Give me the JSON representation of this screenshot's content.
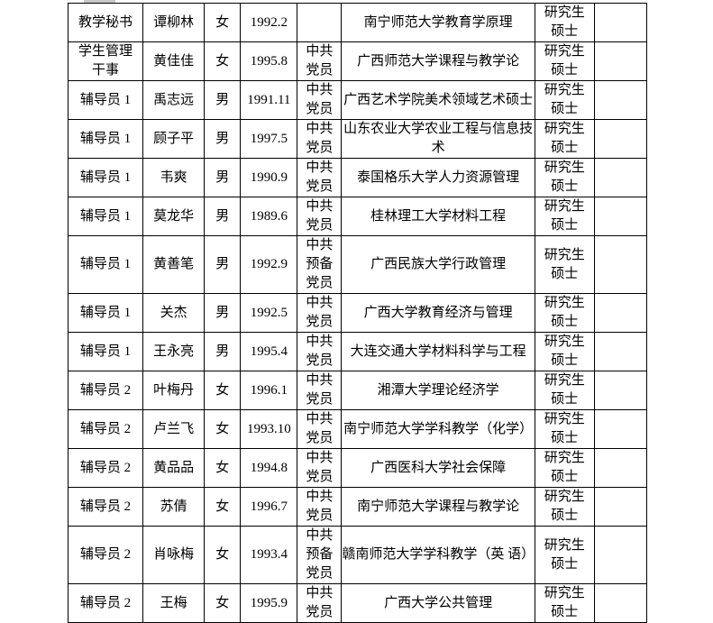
{
  "colors": {
    "background": "#ffffff",
    "border": "#000000",
    "text": "#000000",
    "top_artifact": "#c8c8c8"
  },
  "table": {
    "column_keys": [
      "position",
      "name",
      "gender",
      "birth_date",
      "political_status",
      "school_major",
      "degree",
      "note"
    ],
    "rows": [
      {
        "position": "教学秘书",
        "name": "谭柳林",
        "gender": "女",
        "birth_date": "1992.2",
        "political_status": "",
        "school_major": "南宁师范大学教育学原理",
        "degree": "研究生\n硕士",
        "note": ""
      },
      {
        "position": "学生管理\n干事",
        "name": "黄佳佳",
        "gender": "女",
        "birth_date": "1995.8",
        "political_status": "中共\n党员",
        "school_major": "广西师范大学课程与教学论",
        "degree": "研究生\n硕士",
        "note": ""
      },
      {
        "position": "辅导员 1",
        "name": "禹志远",
        "gender": "男",
        "birth_date": "1991.11",
        "political_status": "中共\n党员",
        "school_major": "广西艺术学院美术领域艺术硕士",
        "degree": "研究生\n硕士",
        "note": ""
      },
      {
        "position": "辅导员 1",
        "name": "顾子平",
        "gender": "男",
        "birth_date": "1997.5",
        "political_status": "中共\n党员",
        "school_major": "山东农业大学农业工程与信息技\n术",
        "degree": "研究生\n硕士",
        "note": ""
      },
      {
        "position": "辅导员 1",
        "name": "韦爽",
        "gender": "男",
        "birth_date": "1990.9",
        "political_status": "中共\n党员",
        "school_major": "泰国格乐大学人力资源管理",
        "degree": "研究生\n硕士",
        "note": ""
      },
      {
        "position": "辅导员 1",
        "name": "莫龙华",
        "gender": "男",
        "birth_date": "1989.6",
        "political_status": "中共\n党员",
        "school_major": "桂林理工大学材料工程",
        "degree": "研究生\n硕士",
        "note": ""
      },
      {
        "position": "辅导员 1",
        "name": "黄善笔",
        "gender": "男",
        "birth_date": "1992.9",
        "political_status": "中共\n预备\n党员",
        "school_major": "广西民族大学行政管理",
        "degree": "研究生\n硕士",
        "note": ""
      },
      {
        "position": "辅导员 1",
        "name": "关杰",
        "gender": "男",
        "birth_date": "1992.5",
        "political_status": "中共\n党员",
        "school_major": "广西大学教育经济与管理",
        "degree": "研究生\n硕士",
        "note": ""
      },
      {
        "position": "辅导员 1",
        "name": "王永亮",
        "gender": "男",
        "birth_date": "1995.4",
        "political_status": "中共\n党员",
        "school_major": "大连交通大学材料科学与工程",
        "degree": "研究生\n硕士",
        "note": ""
      },
      {
        "position": "辅导员 2",
        "name": "叶梅丹",
        "gender": "女",
        "birth_date": "1996.1",
        "political_status": "中共\n党员",
        "school_major": "湘潭大学理论经济学",
        "degree": "研究生\n硕士",
        "note": ""
      },
      {
        "position": "辅导员 2",
        "name": "卢兰飞",
        "gender": "女",
        "birth_date": "1993.10",
        "political_status": "中共\n党员",
        "school_major": "南宁师范大学学科教学（化学）",
        "degree": "研究生\n硕士",
        "note": ""
      },
      {
        "position": "辅导员 2",
        "name": "黄品品",
        "gender": "女",
        "birth_date": "1994.8",
        "political_status": "中共\n党员",
        "school_major": "广西医科大学社会保障",
        "degree": "研究生\n硕士",
        "note": ""
      },
      {
        "position": "辅导员 2",
        "name": "苏倩",
        "gender": "女",
        "birth_date": "1996.7",
        "political_status": "中共\n党员",
        "school_major": "南宁师范大学课程与教学论",
        "degree": "研究生\n硕士",
        "note": ""
      },
      {
        "position": "辅导员 2",
        "name": "肖咏梅",
        "gender": "女",
        "birth_date": "1993.4",
        "political_status": "中共\n预备\n党员",
        "school_major": "赣南师范大学学科教学（英 语）",
        "degree": "研究生\n硕士",
        "note": ""
      },
      {
        "position": "辅导员 2",
        "name": "王梅",
        "gender": "女",
        "birth_date": "1995.9",
        "political_status": "中共\n党员",
        "school_major": "广西大学公共管理",
        "degree": "研究生\n硕士",
        "note": ""
      }
    ]
  }
}
